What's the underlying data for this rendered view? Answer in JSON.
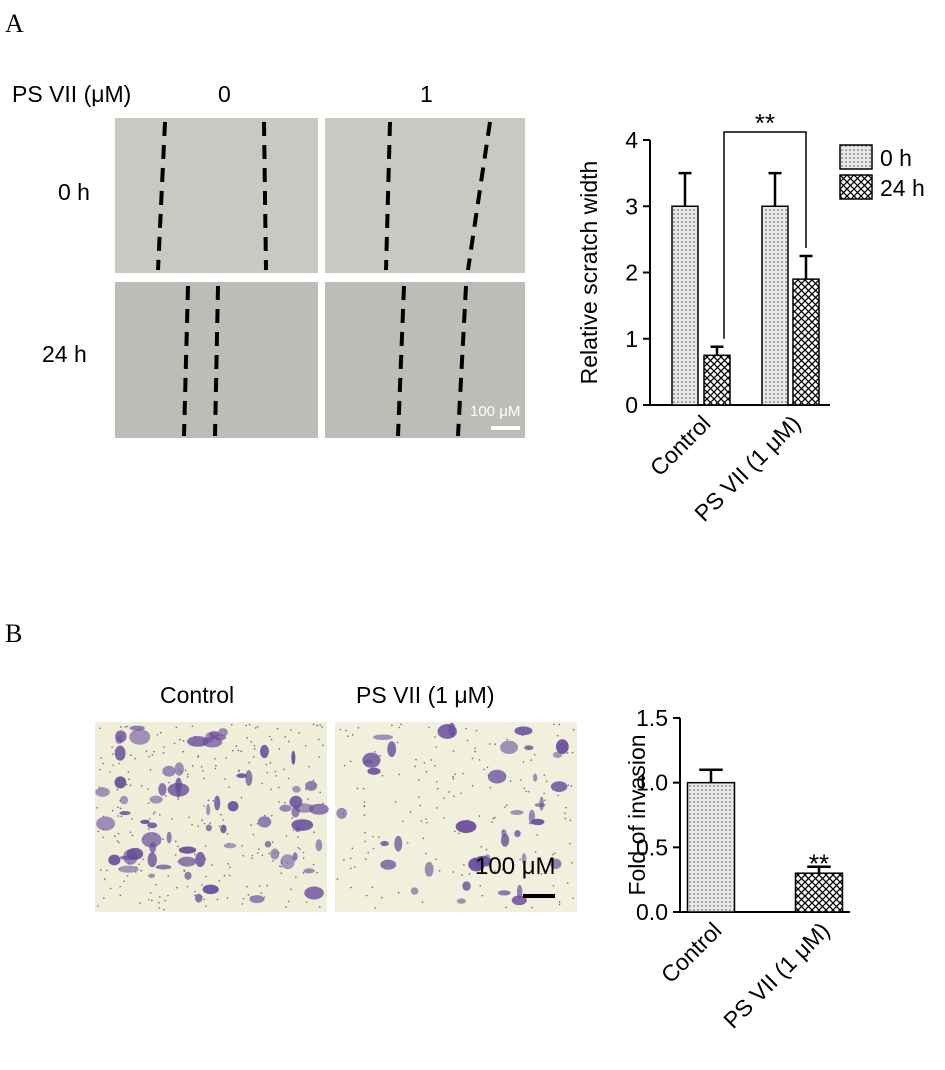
{
  "figure": {
    "panel_a": "A",
    "panel_b": "B",
    "dose_label": "PS VII (μM)",
    "dose_0": "0",
    "dose_1": "1",
    "time_0": "0 h",
    "time_24": "24 h",
    "scale_a": "100 μM",
    "img_b_left": "Control",
    "img_b_right": "PS VII (1 μM)",
    "scale_b": "100 μM"
  },
  "chart_data": [
    {
      "type": "bar",
      "ylabel": "Relative scratch width",
      "categories": [
        "Control",
        "PS VII (1 μM)"
      ],
      "series": [
        {
          "name": "0 h",
          "color": "#d9d9d9",
          "pattern": "dots",
          "values": [
            3,
            3
          ],
          "errors": [
            0.5,
            0.5
          ]
        },
        {
          "name": "24 h",
          "color": "#ffffff",
          "pattern": "crosshatch",
          "values": [
            0.75,
            1.9
          ],
          "errors": [
            0.13,
            0.35
          ]
        }
      ],
      "ylim": [
        0,
        4
      ],
      "yticks": [
        0,
        1,
        2,
        3,
        4
      ],
      "annotation": "**",
      "legend": "right"
    },
    {
      "type": "bar",
      "ylabel": "Fold of invasion",
      "categories": [
        "Control",
        "PS VII (1 μM)"
      ],
      "values": [
        1.0,
        0.3
      ],
      "errors": [
        0.1,
        0.05
      ],
      "patterns": [
        "dots",
        "crosshatch"
      ],
      "ylim": [
        0,
        1.5
      ],
      "yticks": [
        {
          "value": 0,
          "label": "0.0"
        },
        0.5,
        {
          "value": 1,
          "label": "1.0"
        },
        1.5
      ],
      "annotation": "**"
    }
  ]
}
